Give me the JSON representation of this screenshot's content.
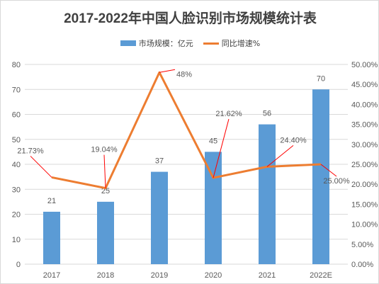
{
  "title": "2017-2022年中国人脸识别市场规模统计表",
  "legend": {
    "bar_label": "市场规模：亿元",
    "line_label": "同比增速%"
  },
  "colors": {
    "bar": "#5b9bd5",
    "line": "#ed7d31",
    "leader": "#ff0000",
    "grid": "#d9d9d9",
    "text": "#595959"
  },
  "chart_data": {
    "type": "bar",
    "categories": [
      "2017",
      "2018",
      "2019",
      "2020",
      "2021",
      "2022E"
    ],
    "series": [
      {
        "name": "市场规模：亿元",
        "type": "bar",
        "axis": "left",
        "values": [
          21,
          25,
          37,
          45,
          56,
          70
        ],
        "labels": [
          "21",
          "25",
          "37",
          "45",
          "56",
          "70"
        ]
      },
      {
        "name": "同比增速%",
        "type": "line",
        "axis": "right",
        "values": [
          21.73,
          19.04,
          48.0,
          21.62,
          24.4,
          25.0
        ],
        "labels": [
          "21.73%",
          "19.04%",
          "48%",
          "21.62%",
          "24.40%",
          "25.00%"
        ]
      }
    ],
    "y_left": {
      "ylim": [
        0,
        80
      ],
      "ticks": [
        "0",
        "10",
        "20",
        "30",
        "40",
        "50",
        "60",
        "70",
        "80"
      ]
    },
    "y_right": {
      "ylim": [
        0,
        50
      ],
      "ticks": [
        "0.00%",
        "5.00%",
        "10.00%",
        "15.00%",
        "20.00%",
        "25.00%",
        "30.00%",
        "35.00%",
        "40.00%",
        "45.00%",
        "50.00%"
      ]
    },
    "grid": true,
    "legend_position": "top-center"
  }
}
